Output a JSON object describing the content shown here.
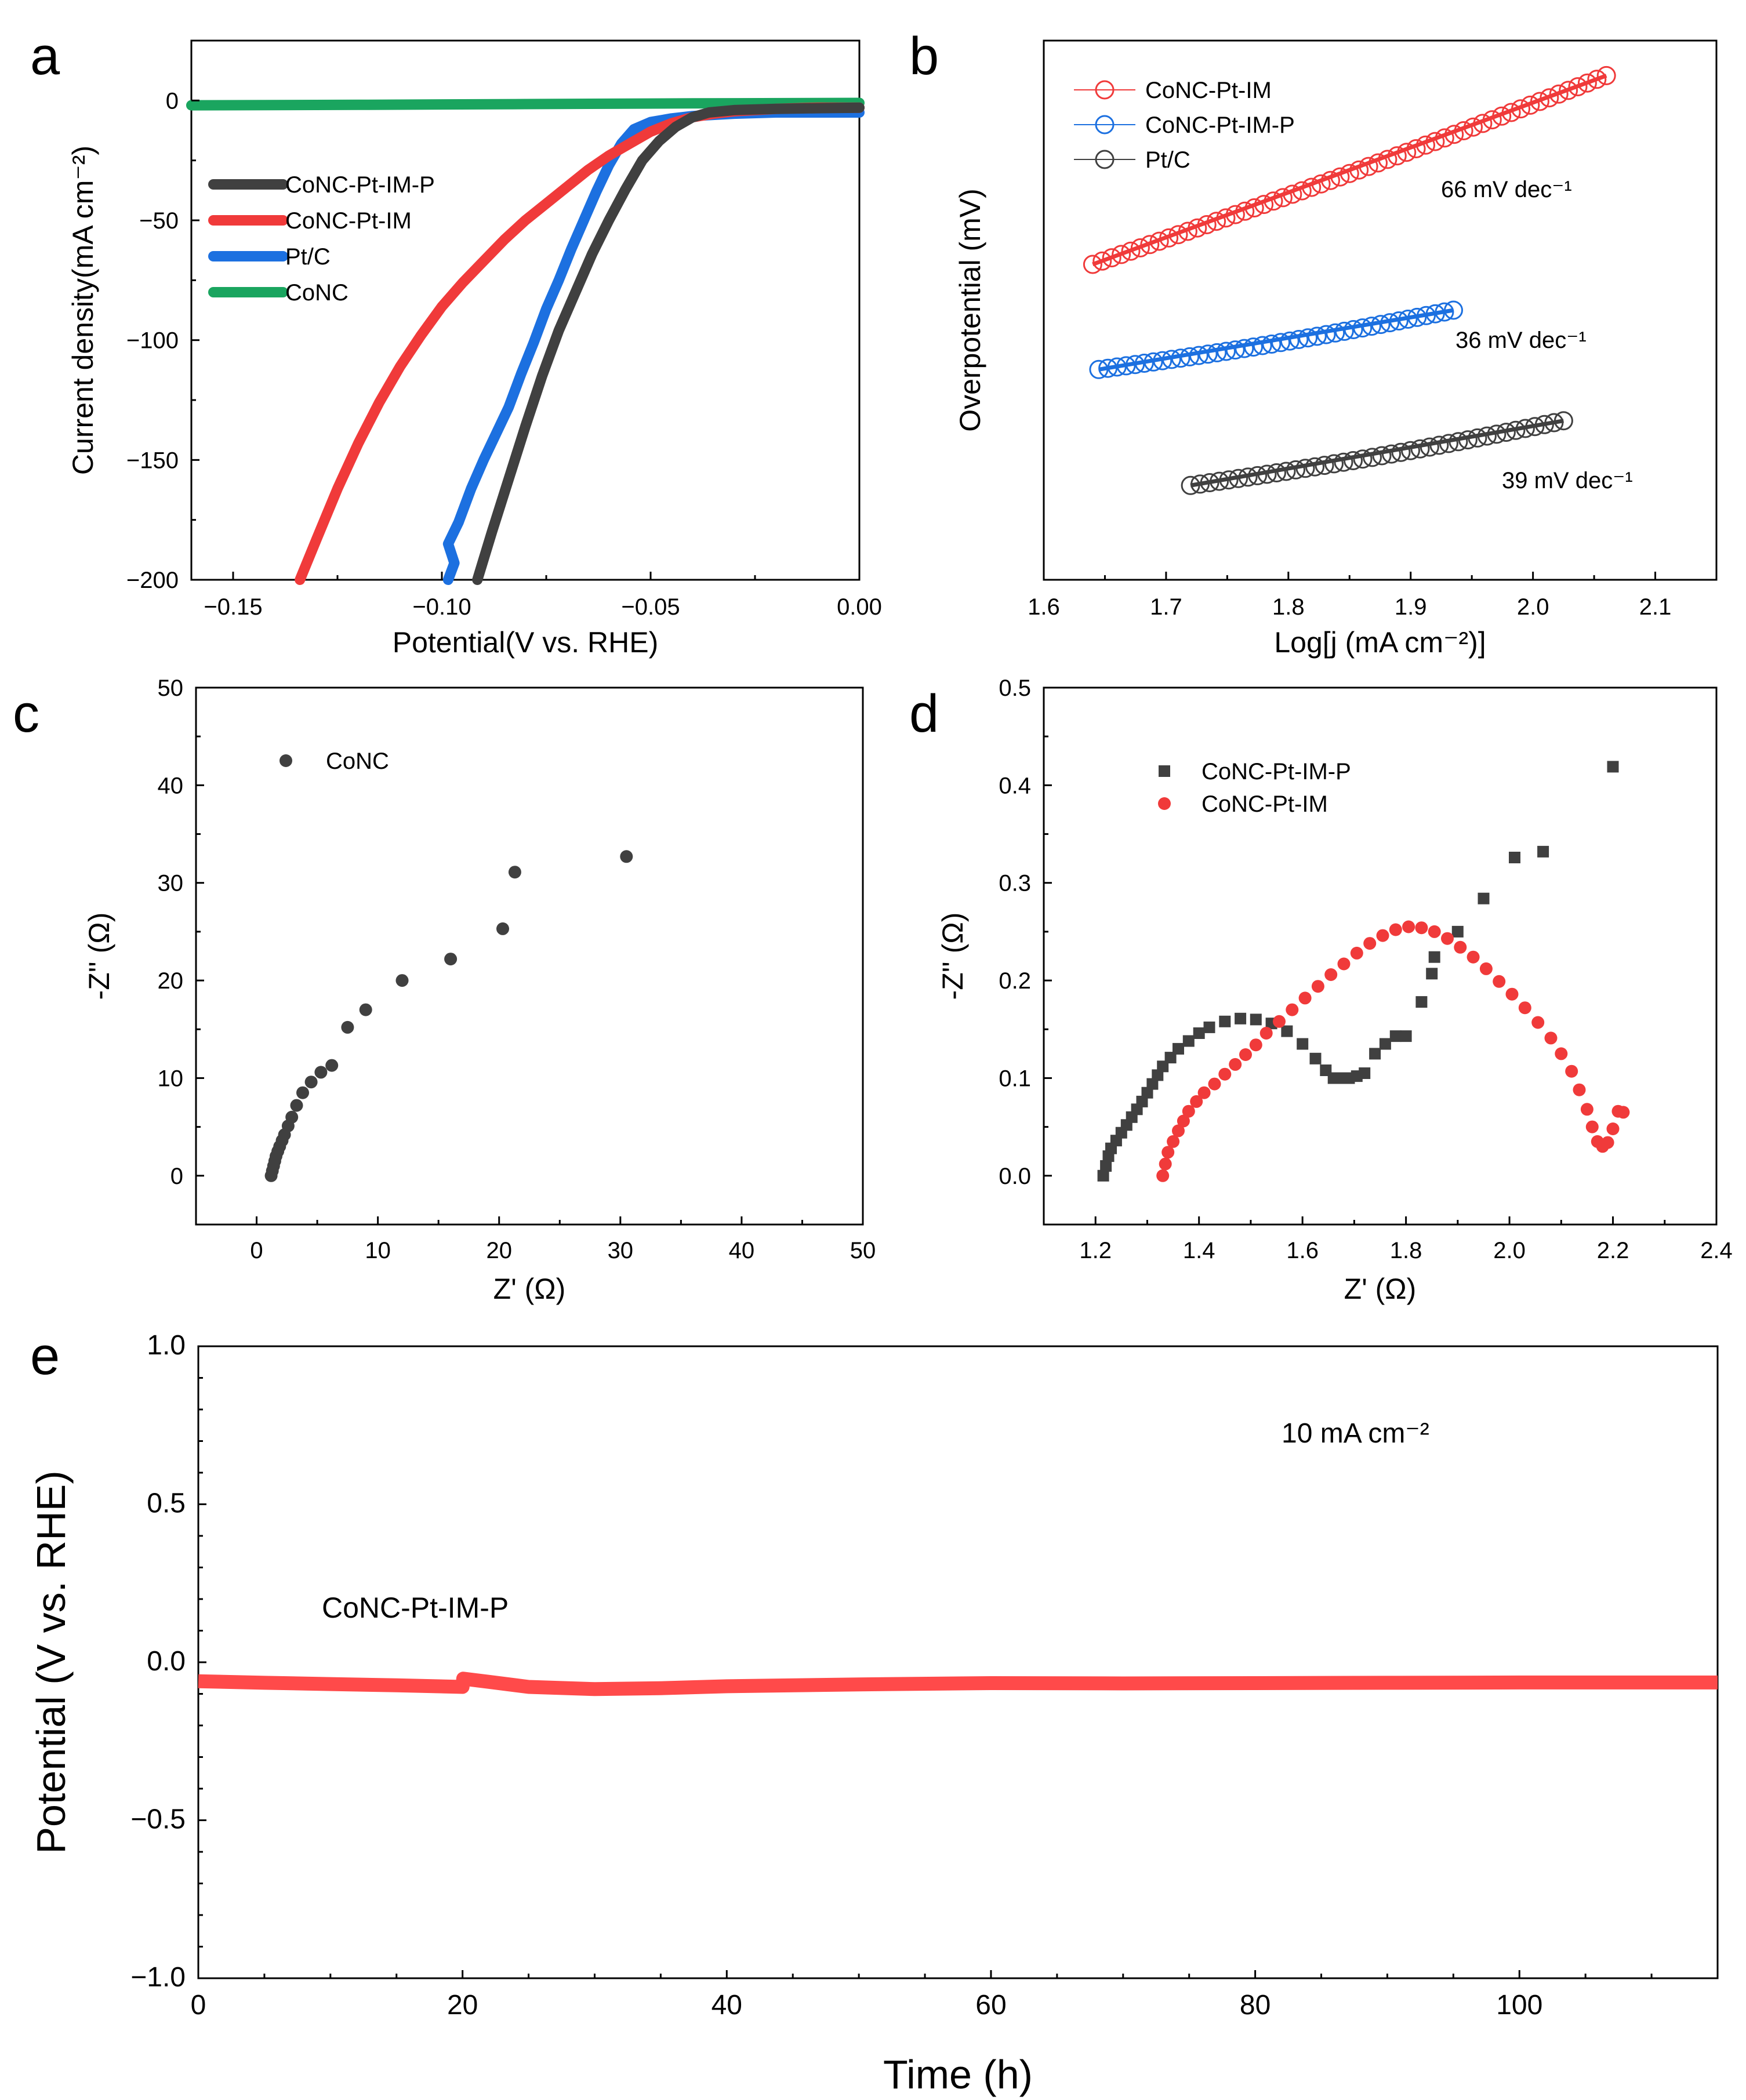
{
  "chart_data": [
    {
      "id": "a",
      "panel_label": "a",
      "type": "line",
      "xlabel": "Potential(V vs. RHE)",
      "ylabel": "Current density(mA cm⁻²)",
      "xlim": [
        -0.16,
        0.0
      ],
      "ylim": [
        -200,
        25
      ],
      "xticks": [
        -0.15,
        -0.1,
        -0.05,
        0.0
      ],
      "xtick_labels": [
        "−0.15",
        "−0.10",
        "−0.05",
        "0.00"
      ],
      "yticks": [
        0,
        -50,
        -100,
        -150,
        -200
      ],
      "ytick_labels": [
        "0",
        "−50",
        "−100",
        "−150",
        "−200"
      ],
      "legend_position": "center-left",
      "series": [
        {
          "name": "CoNC-Pt-IM-P",
          "color": "#404040",
          "x": [
            -0.0915,
            -0.088,
            -0.084,
            -0.08,
            -0.076,
            -0.072,
            -0.068,
            -0.064,
            -0.06,
            -0.056,
            -0.052,
            -0.048,
            -0.044,
            -0.04,
            -0.036,
            -0.03,
            -0.02,
            -0.01,
            0.0
          ],
          "y": [
            -200,
            -180,
            -158,
            -136,
            -115,
            -96,
            -80,
            -64,
            -50,
            -37,
            -25,
            -17,
            -11,
            -7,
            -5,
            -4,
            -3.5,
            -3.2,
            -3
          ]
        },
        {
          "name": "CoNC-Pt-IM",
          "color": "#f03a3a",
          "x": [
            -0.134,
            -0.13,
            -0.125,
            -0.12,
            -0.115,
            -0.11,
            -0.105,
            -0.1,
            -0.095,
            -0.09,
            -0.085,
            -0.08,
            -0.075,
            -0.07,
            -0.065,
            -0.06,
            -0.055,
            -0.05,
            -0.045,
            -0.04,
            -0.035,
            -0.03,
            -0.02,
            -0.01,
            0.0
          ],
          "y": [
            -200,
            -183,
            -162,
            -143,
            -126,
            -111,
            -98,
            -86,
            -76,
            -67,
            -58,
            -50,
            -43,
            -36,
            -29,
            -23,
            -18,
            -13,
            -9.5,
            -7,
            -5.5,
            -4.5,
            -3.5,
            -3,
            -3
          ]
        },
        {
          "name": "Pt/C",
          "color": "#1c70e0",
          "x": [
            -0.0985,
            -0.097,
            -0.0985,
            -0.096,
            -0.093,
            -0.09,
            -0.087,
            -0.084,
            -0.081,
            -0.078,
            -0.075,
            -0.072,
            -0.069,
            -0.066,
            -0.063,
            -0.06,
            -0.057,
            -0.054,
            -0.05,
            -0.045,
            -0.04,
            -0.03,
            -0.02,
            -0.01,
            0.0
          ],
          "y": [
            -200,
            -193,
            -185,
            -176,
            -162,
            -150,
            -139,
            -128,
            -114,
            -101,
            -87,
            -75,
            -62,
            -50,
            -38,
            -27,
            -18,
            -12,
            -9,
            -7.5,
            -6.5,
            -5.5,
            -5,
            -5,
            -5
          ]
        },
        {
          "name": "CoNC",
          "color": "#1aa55f",
          "x": [
            -0.16,
            -0.12,
            -0.08,
            -0.04,
            0.0
          ],
          "y": [
            -2,
            -1.8,
            -1.5,
            -1.2,
            -1
          ]
        }
      ]
    },
    {
      "id": "b",
      "panel_label": "b",
      "type": "scatter",
      "xlabel": "Log[j (mA cm⁻²)]",
      "ylabel": "Overpotential (mV)",
      "xlim": [
        1.6,
        2.15
      ],
      "ylim": [
        0,
        1
      ],
      "y_units": "arbitrary (no y tick labels shown)",
      "xticks": [
        1.6,
        1.7,
        1.8,
        1.9,
        2.0,
        2.1
      ],
      "xtick_labels": [
        "1.6",
        "1.7",
        "1.8",
        "1.9",
        "2.0",
        "2.1"
      ],
      "legend_position": "top-left",
      "series": [
        {
          "name": "CoNC-Pt-IM",
          "color": "#f03a3a",
          "x_start": 1.64,
          "x_end": 2.06,
          "y_start": 0.585,
          "y_end": 0.935,
          "n_points": 55,
          "fit_label": "66 mV dec⁻¹"
        },
        {
          "name": "CoNC-Pt-IM-P",
          "color": "#1c70e0",
          "x_start": 1.645,
          "x_end": 1.935,
          "y_start": 0.39,
          "y_end": 0.5,
          "n_points": 40,
          "fit_label": "36 mV dec⁻¹"
        },
        {
          "name": "Pt/C",
          "color": "#404040",
          "x_start": 1.72,
          "x_end": 2.025,
          "y_start": 0.175,
          "y_end": 0.295,
          "n_points": 40,
          "fit_label": "39 mV dec⁻¹"
        }
      ]
    },
    {
      "id": "c",
      "panel_label": "c",
      "type": "scatter",
      "xlabel": "Z' (Ω)",
      "ylabel": "-Z'' (Ω)",
      "xlim": [
        -5,
        50
      ],
      "ylim": [
        -5,
        50
      ],
      "xticks": [
        0,
        10,
        20,
        30,
        40,
        50
      ],
      "xtick_labels": [
        "0",
        "10",
        "20",
        "30",
        "40",
        "50"
      ],
      "yticks": [
        0,
        10,
        20,
        30,
        40,
        50
      ],
      "ytick_labels": [
        "0",
        "10",
        "20",
        "30",
        "40",
        "50"
      ],
      "legend_position": "top-left",
      "series": [
        {
          "name": "CoNC",
          "color": "#404040",
          "x": [
            1.2,
            1.3,
            1.4,
            1.5,
            1.6,
            1.75,
            1.9,
            2.1,
            2.3,
            2.6,
            2.9,
            3.3,
            3.8,
            4.5,
            5.3,
            6.2,
            7.5,
            9.0,
            12.0,
            16.0,
            20.3,
            21.3,
            30.5
          ],
          "y": [
            0.0,
            0.5,
            1.0,
            1.5,
            2.0,
            2.5,
            3.0,
            3.6,
            4.2,
            5.1,
            6.0,
            7.2,
            8.5,
            9.6,
            10.6,
            11.3,
            15.2,
            17.0,
            20.0,
            22.2,
            25.3,
            31.1,
            32.7
          ]
        }
      ]
    },
    {
      "id": "d",
      "panel_label": "d",
      "type": "scatter",
      "xlabel": "Z' (Ω)",
      "ylabel": "-Z'' (Ω)",
      "xlim": [
        1.1,
        2.4
      ],
      "ylim": [
        -0.05,
        0.5
      ],
      "xticks": [
        1.2,
        1.4,
        1.6,
        1.8,
        2.0,
        2.2,
        2.4
      ],
      "xtick_labels": [
        "1.2",
        "1.4",
        "1.6",
        "1.8",
        "2.0",
        "2.2",
        "2.4"
      ],
      "yticks": [
        0.0,
        0.1,
        0.2,
        0.3,
        0.4,
        0.5
      ],
      "ytick_labels": [
        "0.0",
        "0.1",
        "0.2",
        "0.3",
        "0.4",
        "0.5"
      ],
      "legend_position": "top-left",
      "series": [
        {
          "name": "CoNC-Pt-IM-P",
          "color": "#404040",
          "marker": "square",
          "x": [
            1.215,
            1.22,
            1.225,
            1.23,
            1.24,
            1.25,
            1.26,
            1.27,
            1.28,
            1.29,
            1.3,
            1.31,
            1.32,
            1.33,
            1.345,
            1.36,
            1.38,
            1.4,
            1.42,
            1.45,
            1.48,
            1.51,
            1.54,
            1.57,
            1.6,
            1.625,
            1.645,
            1.66,
            1.675,
            1.69,
            1.705,
            1.72,
            1.74,
            1.76,
            1.78,
            1.8,
            1.83,
            1.85,
            1.855,
            1.9,
            1.95,
            2.01,
            2.065,
            2.2
          ],
          "y": [
            0.0,
            0.01,
            0.02,
            0.028,
            0.036,
            0.044,
            0.052,
            0.06,
            0.068,
            0.076,
            0.085,
            0.094,
            0.103,
            0.112,
            0.121,
            0.13,
            0.138,
            0.146,
            0.152,
            0.158,
            0.161,
            0.16,
            0.156,
            0.148,
            0.135,
            0.12,
            0.108,
            0.1,
            0.1,
            0.1,
            0.102,
            0.105,
            0.125,
            0.135,
            0.143,
            0.143,
            0.178,
            0.207,
            0.224,
            0.25,
            0.284,
            0.326,
            0.332,
            0.419
          ]
        },
        {
          "name": "CoNC-Pt-IM",
          "color": "#f03a3a",
          "marker": "circle",
          "x": [
            1.33,
            1.335,
            1.34,
            1.35,
            1.36,
            1.37,
            1.38,
            1.395,
            1.41,
            1.43,
            1.45,
            1.47,
            1.49,
            1.51,
            1.53,
            1.555,
            1.58,
            1.605,
            1.63,
            1.655,
            1.68,
            1.705,
            1.73,
            1.755,
            1.78,
            1.805,
            1.83,
            1.855,
            1.88,
            1.905,
            1.93,
            1.955,
            1.98,
            2.005,
            2.03,
            2.055,
            2.08,
            2.1,
            2.12,
            2.135,
            2.15,
            2.16,
            2.17,
            2.18,
            2.19,
            2.2,
            2.21,
            2.22
          ],
          "y": [
            0.0,
            0.012,
            0.024,
            0.035,
            0.046,
            0.056,
            0.066,
            0.076,
            0.085,
            0.094,
            0.104,
            0.114,
            0.124,
            0.134,
            0.146,
            0.158,
            0.17,
            0.182,
            0.194,
            0.206,
            0.217,
            0.228,
            0.238,
            0.246,
            0.252,
            0.255,
            0.254,
            0.25,
            0.243,
            0.234,
            0.224,
            0.212,
            0.199,
            0.186,
            0.172,
            0.157,
            0.141,
            0.125,
            0.107,
            0.088,
            0.068,
            0.05,
            0.035,
            0.03,
            0.034,
            0.048,
            0.066,
            0.065
          ]
        }
      ]
    },
    {
      "id": "e",
      "panel_label": "e",
      "type": "line",
      "xlabel": "Time (h)",
      "ylabel": "Potential (V vs. RHE)",
      "xlim": [
        0,
        115
      ],
      "ylim": [
        -1.0,
        1.0
      ],
      "xticks": [
        0,
        20,
        40,
        60,
        80,
        100
      ],
      "xtick_labels": [
        "0",
        "20",
        "40",
        "60",
        "80",
        "100"
      ],
      "yticks": [
        1.0,
        0.5,
        0.0,
        -0.5,
        -1.0
      ],
      "ytick_labels": [
        "1.0",
        "0.5",
        "0.0",
        "−0.5",
        "−1.0"
      ],
      "annotation": "10 mA cm⁻²",
      "series": [
        {
          "name": "CoNC-Pt-IM-P",
          "color": "#ff4a4a",
          "x": [
            0,
            5,
            10,
            15,
            20,
            20.05,
            22,
            25,
            30,
            35,
            40,
            50,
            60,
            70,
            80,
            90,
            100,
            110,
            115
          ],
          "y": [
            -0.06,
            -0.065,
            -0.069,
            -0.073,
            -0.078,
            -0.052,
            -0.062,
            -0.078,
            -0.085,
            -0.082,
            -0.076,
            -0.07,
            -0.066,
            -0.067,
            -0.066,
            -0.065,
            -0.064,
            -0.064,
            -0.064
          ]
        }
      ]
    }
  ]
}
